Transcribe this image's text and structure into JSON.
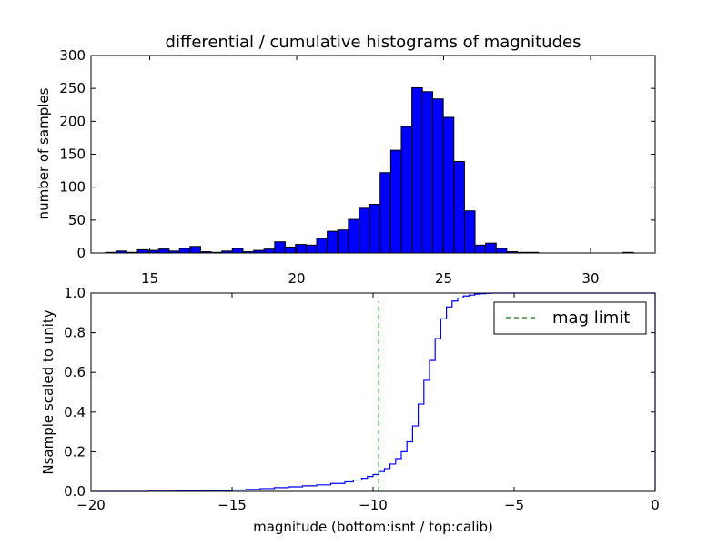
{
  "chart_data": [
    {
      "type": "bar",
      "title": "differential / cumulative histograms of magnitudes",
      "xlabel": "",
      "ylabel": "number of samples",
      "xlim": [
        13,
        32.2
      ],
      "ylim": [
        0,
        300
      ],
      "xticks": [
        "15",
        "20",
        "25",
        "30"
      ],
      "yticks": [
        "0",
        "50",
        "100",
        "150",
        "200",
        "250",
        "300"
      ],
      "bar_color": "#0000ff",
      "bin_width": 0.3593,
      "bin_left": [
        13.5,
        13.86,
        14.22,
        14.58,
        14.94,
        15.3,
        15.66,
        16.01,
        16.37,
        16.73,
        17.09,
        17.45,
        17.81,
        18.17,
        18.53,
        18.89,
        19.25,
        19.61,
        19.96,
        20.32,
        20.68,
        21.04,
        21.4,
        21.76,
        22.12,
        22.48,
        22.84,
        23.2,
        23.56,
        23.92,
        24.27,
        24.63,
        24.99,
        25.35,
        25.71,
        26.07,
        26.43,
        26.79,
        27.15,
        27.51,
        27.87,
        28.23,
        28.58,
        28.94,
        29.3,
        29.66,
        30.02,
        30.38,
        30.74,
        31.1
      ],
      "values": [
        1,
        3,
        1,
        5,
        4,
        6,
        3,
        7,
        10,
        2,
        1,
        3,
        7,
        2,
        4,
        6,
        17,
        9,
        13,
        12,
        22,
        33,
        35,
        51,
        68,
        74,
        122,
        156,
        192,
        251,
        245,
        234,
        206,
        139,
        64,
        12,
        15,
        7,
        2,
        1,
        1,
        0,
        0,
        0,
        0,
        0,
        0,
        0,
        0,
        1
      ]
    },
    {
      "type": "line",
      "xlabel": "magnitude (bottom:isnt / top:calib)",
      "ylabel": "Nsample scaled to unity",
      "xlim": [
        -20,
        0
      ],
      "ylim": [
        0,
        1.0
      ],
      "xticks": [
        "−20",
        "−15",
        "−10",
        "−5",
        "0"
      ],
      "yticks": [
        "0.0",
        "0.2",
        "0.4",
        "0.6",
        "0.8",
        "1.0"
      ],
      "series": [
        {
          "color": "#0000ff",
          "style": "step",
          "x": [
            -20,
            -18,
            -17,
            -16,
            -15,
            -14.5,
            -14,
            -13.5,
            -13,
            -12.5,
            -12,
            -11.5,
            -11,
            -10.7,
            -10.4,
            -10.2,
            -10.0,
            -9.8,
            -9.6,
            -9.4,
            -9.2,
            -9.0,
            -8.8,
            -8.6,
            -8.4,
            -8.2,
            -8.0,
            -7.8,
            -7.6,
            -7.4,
            -7.2,
            -7.0,
            -6.8,
            -6.6,
            -6.4,
            -6.2,
            -6.0,
            -5.8,
            -5.5,
            -5.0,
            -4.0,
            -2.0,
            -0.05,
            0
          ],
          "y": [
            0.0,
            0.001,
            0.002,
            0.004,
            0.007,
            0.01,
            0.014,
            0.019,
            0.023,
            0.028,
            0.033,
            0.04,
            0.048,
            0.057,
            0.066,
            0.075,
            0.085,
            0.1,
            0.115,
            0.138,
            0.165,
            0.2,
            0.25,
            0.33,
            0.44,
            0.56,
            0.66,
            0.77,
            0.87,
            0.93,
            0.96,
            0.975,
            0.985,
            0.99,
            0.995,
            0.997,
            0.999,
            1.0,
            1.0,
            1.0,
            1.0,
            1.0,
            1.0,
            0.0
          ]
        },
        {
          "name": "mag limit",
          "color": "#007f00",
          "style": "dashed",
          "x": [
            -9.8,
            -9.8
          ],
          "y": [
            0,
            0.96
          ]
        }
      ],
      "legend": {
        "placement": "upper-right"
      }
    }
  ]
}
